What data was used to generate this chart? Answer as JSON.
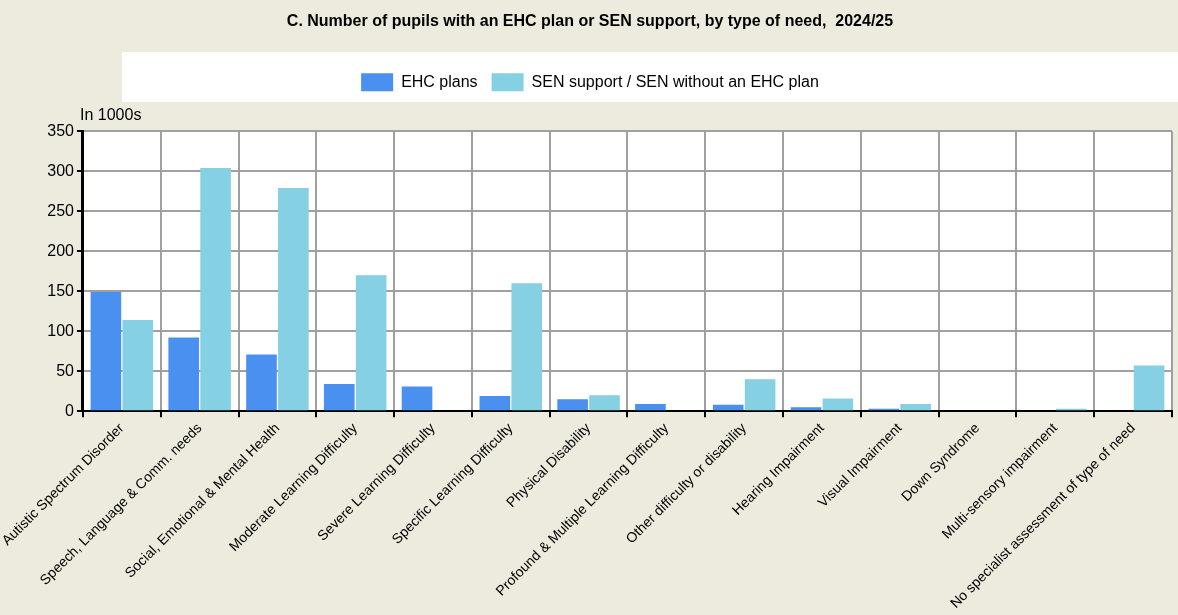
{
  "chart_data": {
    "type": "bar",
    "title": "C. Number of pupils with an EHC plan or SEN support, by type of need,  2024/25",
    "ylabel": "In 1000s",
    "categories": [
      "Autistic Spectrum Disorder",
      "Speech, Language & Comm. needs",
      "Social, Emotional & Mental Health",
      "Moderate Learning Difficulty",
      "Severe Learning Difficulty",
      "Specific Learning Difficulty",
      "Physical Disability",
      "Profound & Multiple Learning Difficulty",
      "Other difficulty or disability",
      "Hearing Impairment",
      "Visual Impairment",
      "Down Syndrome",
      "Multi-sensory impairment",
      "No specialist assessment of type of need"
    ],
    "series": [
      {
        "name": "EHC plans",
        "color": "#4a90f0",
        "values": [
          149,
          92,
          71,
          34,
          31,
          19,
          15,
          9,
          8,
          5,
          3,
          0,
          0,
          0
        ]
      },
      {
        "name": "SEN support / SEN without an EHC plan",
        "color": "#85d0e2",
        "values": [
          114,
          304,
          279,
          170,
          0,
          160,
          20,
          0,
          40,
          16,
          9,
          0,
          3,
          57
        ]
      }
    ],
    "ylim": [
      0,
      350
    ],
    "yticks": [
      0,
      50,
      100,
      150,
      200,
      250,
      300,
      350
    ],
    "grid": true,
    "legend": "top"
  }
}
